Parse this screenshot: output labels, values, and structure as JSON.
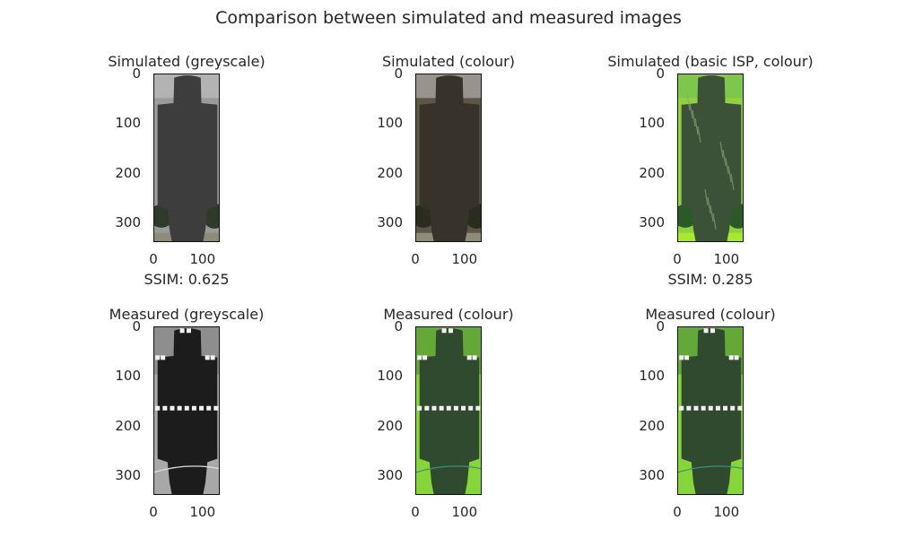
{
  "chart_data": {
    "type": "image",
    "title": "Comparison between simulated and measured images",
    "panels": [
      {
        "title": "Simulated (greyscale)",
        "xticks": [
          "0",
          "100"
        ],
        "yticks": [
          "0",
          "100",
          "200",
          "300"
        ],
        "xlabel": "SSIM: 0.625",
        "ssim": 0.625,
        "image_content": "greyscale target silhouette"
      },
      {
        "title": "Simulated (colour)",
        "xticks": [
          "0",
          "100"
        ],
        "yticks": [
          "0",
          "100",
          "200",
          "300"
        ],
        "xlabel": "",
        "image_content": "dark brown target silhouette"
      },
      {
        "title": "Simulated (basic ISP, colour)",
        "xticks": [
          "0",
          "100"
        ],
        "yticks": [
          "0",
          "100",
          "200",
          "300"
        ],
        "xlabel": "SSIM: 0.285",
        "ssim": 0.285,
        "image_content": "green target silhouette with textured body"
      },
      {
        "title": "Measured (greyscale)",
        "xticks": [
          "0",
          "100"
        ],
        "yticks": [
          "0",
          "100",
          "200",
          "300"
        ],
        "xlabel": "",
        "image_content": "black target on grey background with white markers"
      },
      {
        "title": "Measured (colour)",
        "xticks": [
          "0",
          "100"
        ],
        "yticks": [
          "0",
          "100",
          "200",
          "300"
        ],
        "xlabel": "",
        "image_content": "dark green target on bright green grass with white markers"
      },
      {
        "title": "Measured (colour)",
        "xticks": [
          "0",
          "100"
        ],
        "yticks": [
          "0",
          "100",
          "200",
          "300"
        ],
        "xlabel": "",
        "image_content": "dark green target on bright green grass with white markers"
      }
    ],
    "image_extent": {
      "x": [
        0,
        135
      ],
      "y": [
        0,
        340
      ]
    },
    "colors": {
      "sim_grey_bg": "#9a9a9a",
      "sim_grey_body": "#3d3d3d",
      "sim_colour_bg": "#5b5646",
      "sim_colour_body": "#37322a",
      "isp_bg": "#8fd13f",
      "isp_body": "#3b5238",
      "meas_grey_bg": "#a8a8a8",
      "meas_grey_body": "#1c1c1c",
      "meas_col_bg": "#86d63a",
      "meas_col_body": "#2f4a2f",
      "marker": "#f2f2f2"
    }
  }
}
